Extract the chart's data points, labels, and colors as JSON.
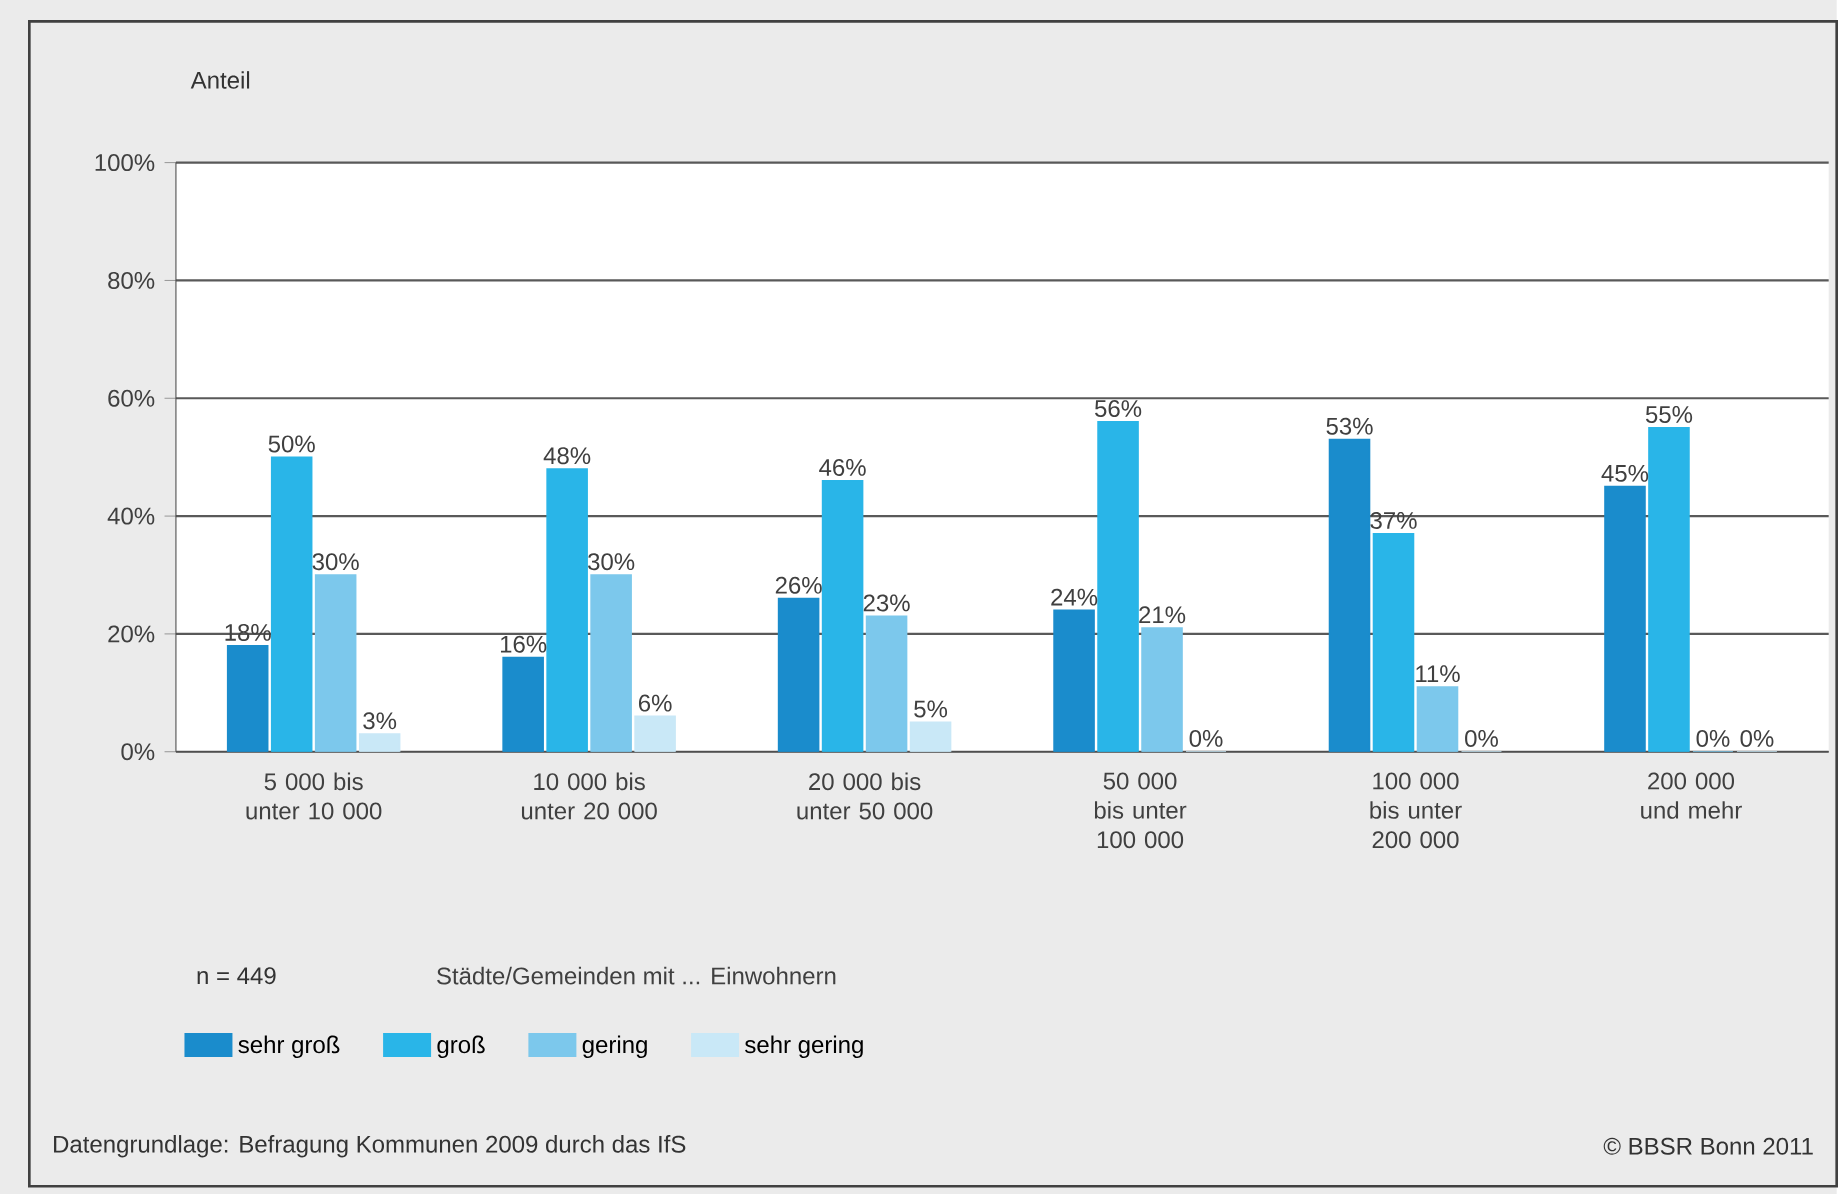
{
  "chart_data": {
    "type": "bar",
    "ylabel": "Anteil",
    "xlabel": "Städte/Gemeinden mit ... Einwohnern",
    "categories": [
      "5 000 bis unter 10 000",
      "10 000 bis unter 20 000",
      "20 000 bis unter 50 000",
      "50 000 bis unter 100 000",
      "100 000 bis unter 200 000",
      "200 000 und mehr"
    ],
    "series": [
      {
        "name": "sehr groß",
        "color": "#1a8ccc",
        "values": [
          18,
          16,
          26,
          24,
          53,
          45
        ],
        "value_labels": [
          "18%",
          "16%",
          "26%",
          "24%",
          "53%",
          "45%"
        ]
      },
      {
        "name": "groß",
        "color": "#29b5e8",
        "values": [
          50,
          48,
          46,
          56,
          37,
          55
        ],
        "value_labels": [
          "50%",
          "48%",
          "46%",
          "56%",
          "37%",
          "55%"
        ]
      },
      {
        "name": "gering",
        "color": "#7cc8ec",
        "values": [
          30,
          30,
          23,
          21,
          11,
          0
        ],
        "value_labels": [
          "30%",
          "30%",
          "23%",
          "21%",
          "11%",
          "0%"
        ]
      },
      {
        "name": "sehr gering",
        "color": "#c9e8f7",
        "values": [
          3,
          6,
          5,
          0,
          0,
          0
        ],
        "value_labels": [
          "3%",
          "6%",
          "5%",
          "0%",
          "0%",
          "0%"
        ]
      }
    ],
    "ylim": [
      0,
      100
    ],
    "yticks": [
      {
        "value": 0,
        "label": "0%"
      },
      {
        "value": 20,
        "label": "20%"
      },
      {
        "value": 40,
        "label": "40%"
      },
      {
        "value": 60,
        "label": "60%"
      },
      {
        "value": 80,
        "label": "80%"
      },
      {
        "value": 100,
        "label": "100%"
      }
    ],
    "grid": "y",
    "legend": "bottom",
    "annotations": [
      "n = 449",
      "Datengrundlage: Befragung Kommunen 2009 durch das IfS",
      "© BBSR Bonn 2011"
    ]
  }
}
